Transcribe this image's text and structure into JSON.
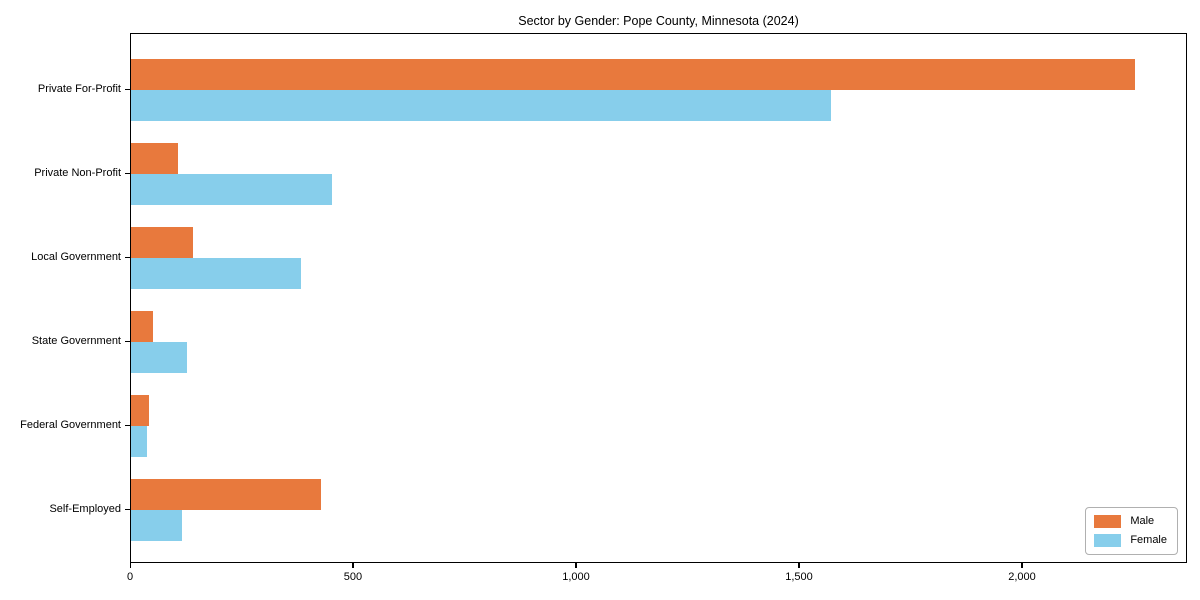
{
  "chart_data": {
    "type": "bar",
    "orientation": "horizontal",
    "title": "Sector by Gender: Pope County, Minnesota (2024)",
    "categories": [
      "Private For-Profit",
      "Private Non-Profit",
      "Local Government",
      "State Government",
      "Federal Government",
      "Self-Employed"
    ],
    "series": [
      {
        "name": "Male",
        "color": "#e8793d",
        "values": [
          2250,
          105,
          140,
          50,
          40,
          425
        ]
      },
      {
        "name": "Female",
        "color": "#87ceeb",
        "values": [
          1570,
          450,
          380,
          125,
          35,
          115
        ]
      }
    ],
    "xlabel": "",
    "ylabel": "",
    "xlim": [
      0,
      2370
    ],
    "x_ticks": [
      0,
      500,
      1000,
      1500,
      2000
    ],
    "x_tick_labels": [
      "0",
      "500",
      "1,000",
      "1,500",
      "2,000"
    ],
    "legend_position": "lower right",
    "grid": false
  }
}
